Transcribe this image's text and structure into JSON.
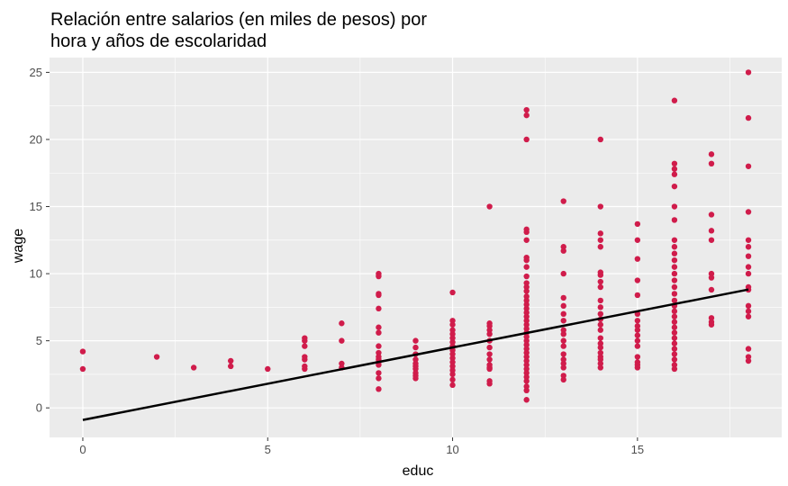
{
  "chart_data": {
    "type": "scatter",
    "title_lines": [
      "Relación entre salarios (en miles de pesos) por",
      "hora y años de escolaridad"
    ],
    "xlabel": "educ",
    "ylabel": "wage",
    "xlim": [
      -0.9,
      18.9
    ],
    "ylim": [
      -2.2,
      26.1
    ],
    "x_ticks": [
      0,
      5,
      10,
      15
    ],
    "x_tick_labels": [
      "0",
      "5",
      "10",
      "15"
    ],
    "y_ticks": [
      0,
      5,
      10,
      15,
      20,
      25
    ],
    "y_tick_labels": [
      "0",
      "5",
      "10",
      "15",
      "20",
      "25"
    ],
    "x_minor_ticks": [
      2.5,
      7.5,
      12.5,
      17.5
    ],
    "y_minor_ticks": [
      2.5,
      7.5,
      12.5,
      17.5,
      22.5
    ],
    "grid": true,
    "legend": "none",
    "colors": {
      "panel_background": "#ebebeb",
      "grid": "#ffffff",
      "points": "#d01c4b",
      "fit_line": "#000000",
      "tick_text": "#4d4d4d"
    },
    "fit_line": {
      "type": "linear",
      "intercept": -0.9,
      "slope": 0.54
    },
    "points": [
      [
        0,
        4.2
      ],
      [
        0,
        2.9
      ],
      [
        2,
        3.8
      ],
      [
        3,
        3.0
      ],
      [
        4,
        3.5
      ],
      [
        4,
        3.1
      ],
      [
        5,
        2.9
      ],
      [
        6,
        5.2
      ],
      [
        6,
        5.0
      ],
      [
        6,
        4.6
      ],
      [
        6,
        3.8
      ],
      [
        6,
        3.6
      ],
      [
        6,
        3.1
      ],
      [
        6,
        2.9
      ],
      [
        7,
        6.3
      ],
      [
        7,
        5.0
      ],
      [
        7,
        3.3
      ],
      [
        7,
        3.0
      ],
      [
        8,
        10.0
      ],
      [
        8,
        9.8
      ],
      [
        8,
        8.5
      ],
      [
        8,
        8.4
      ],
      [
        8,
        7.4
      ],
      [
        8,
        6.0
      ],
      [
        8,
        5.6
      ],
      [
        8,
        4.6
      ],
      [
        8,
        4.1
      ],
      [
        8,
        3.8
      ],
      [
        8,
        3.6
      ],
      [
        8,
        3.4
      ],
      [
        8,
        3.2
      ],
      [
        8,
        2.6
      ],
      [
        8,
        2.2
      ],
      [
        8,
        1.4
      ],
      [
        9,
        5.0
      ],
      [
        9,
        4.5
      ],
      [
        9,
        4.0
      ],
      [
        9,
        3.6
      ],
      [
        9,
        3.3
      ],
      [
        9,
        3.1
      ],
      [
        9,
        2.9
      ],
      [
        9,
        2.6
      ],
      [
        9,
        2.4
      ],
      [
        9,
        2.2
      ],
      [
        10,
        8.6
      ],
      [
        10,
        6.5
      ],
      [
        10,
        6.2
      ],
      [
        10,
        5.8
      ],
      [
        10,
        5.5
      ],
      [
        10,
        5.2
      ],
      [
        10,
        4.9
      ],
      [
        10,
        4.6
      ],
      [
        10,
        4.3
      ],
      [
        10,
        4.0
      ],
      [
        10,
        3.7
      ],
      [
        10,
        3.4
      ],
      [
        10,
        3.1
      ],
      [
        10,
        2.8
      ],
      [
        10,
        2.5
      ],
      [
        10,
        2.1
      ],
      [
        10,
        1.7
      ],
      [
        11,
        15.0
      ],
      [
        11,
        6.3
      ],
      [
        11,
        6.1
      ],
      [
        11,
        5.8
      ],
      [
        11,
        5.5
      ],
      [
        11,
        5.0
      ],
      [
        11,
        4.5
      ],
      [
        11,
        4.0
      ],
      [
        11,
        3.6
      ],
      [
        11,
        3.2
      ],
      [
        11,
        3.0
      ],
      [
        11,
        2.9
      ],
      [
        11,
        2.0
      ],
      [
        11,
        1.8
      ],
      [
        12,
        22.2
      ],
      [
        12,
        21.8
      ],
      [
        12,
        20.0
      ],
      [
        12,
        13.3
      ],
      [
        12,
        13.1
      ],
      [
        12,
        12.5
      ],
      [
        12,
        11.2
      ],
      [
        12,
        11.0
      ],
      [
        12,
        10.5
      ],
      [
        12,
        9.8
      ],
      [
        12,
        9.3
      ],
      [
        12,
        9.0
      ],
      [
        12,
        8.7
      ],
      [
        12,
        8.3
      ],
      [
        12,
        8.0
      ],
      [
        12,
        7.7
      ],
      [
        12,
        7.4
      ],
      [
        12,
        7.1
      ],
      [
        12,
        6.8
      ],
      [
        12,
        6.5
      ],
      [
        12,
        6.2
      ],
      [
        12,
        5.9
      ],
      [
        12,
        5.6
      ],
      [
        12,
        5.3
      ],
      [
        12,
        5.0
      ],
      [
        12,
        4.7
      ],
      [
        12,
        4.4
      ],
      [
        12,
        4.1
      ],
      [
        12,
        3.8
      ],
      [
        12,
        3.5
      ],
      [
        12,
        3.2
      ],
      [
        12,
        2.9
      ],
      [
        12,
        2.6
      ],
      [
        12,
        2.3
      ],
      [
        12,
        2.0
      ],
      [
        12,
        1.6
      ],
      [
        12,
        1.3
      ],
      [
        12,
        0.6
      ],
      [
        13,
        15.4
      ],
      [
        13,
        12.0
      ],
      [
        13,
        11.7
      ],
      [
        13,
        10.0
      ],
      [
        13,
        8.2
      ],
      [
        13,
        7.6
      ],
      [
        13,
        7.0
      ],
      [
        13,
        6.5
      ],
      [
        13,
        5.8
      ],
      [
        13,
        5.5
      ],
      [
        13,
        5.0
      ],
      [
        13,
        4.6
      ],
      [
        13,
        4.0
      ],
      [
        13,
        3.6
      ],
      [
        13,
        3.3
      ],
      [
        13,
        3.0
      ],
      [
        13,
        2.4
      ],
      [
        13,
        2.1
      ],
      [
        14,
        20.0
      ],
      [
        14,
        15.0
      ],
      [
        14,
        13.0
      ],
      [
        14,
        12.5
      ],
      [
        14,
        12.0
      ],
      [
        14,
        10.1
      ],
      [
        14,
        9.9
      ],
      [
        14,
        9.4
      ],
      [
        14,
        9.0
      ],
      [
        14,
        8.0
      ],
      [
        14,
        7.5
      ],
      [
        14,
        7.0
      ],
      [
        14,
        6.6
      ],
      [
        14,
        6.2
      ],
      [
        14,
        5.8
      ],
      [
        14,
        5.2
      ],
      [
        14,
        4.8
      ],
      [
        14,
        4.5
      ],
      [
        14,
        4.1
      ],
      [
        14,
        3.8
      ],
      [
        14,
        3.6
      ],
      [
        14,
        3.3
      ],
      [
        14,
        3.0
      ],
      [
        15,
        13.7
      ],
      [
        15,
        12.5
      ],
      [
        15,
        11.1
      ],
      [
        15,
        9.5
      ],
      [
        15,
        8.4
      ],
      [
        15,
        7.0
      ],
      [
        15,
        6.5
      ],
      [
        15,
        6.1
      ],
      [
        15,
        5.8
      ],
      [
        15,
        5.4
      ],
      [
        15,
        5.0
      ],
      [
        15,
        4.6
      ],
      [
        15,
        3.8
      ],
      [
        15,
        3.4
      ],
      [
        15,
        3.2
      ],
      [
        15,
        3.0
      ],
      [
        16,
        22.9
      ],
      [
        16,
        18.2
      ],
      [
        16,
        17.8
      ],
      [
        16,
        17.4
      ],
      [
        16,
        16.5
      ],
      [
        16,
        15.0
      ],
      [
        16,
        14.0
      ],
      [
        16,
        12.5
      ],
      [
        16,
        12.0
      ],
      [
        16,
        11.5
      ],
      [
        16,
        11.0
      ],
      [
        16,
        10.5
      ],
      [
        16,
        10.0
      ],
      [
        16,
        9.5
      ],
      [
        16,
        9.0
      ],
      [
        16,
        8.5
      ],
      [
        16,
        8.0
      ],
      [
        16,
        7.6
      ],
      [
        16,
        7.2
      ],
      [
        16,
        6.8
      ],
      [
        16,
        6.4
      ],
      [
        16,
        6.0
      ],
      [
        16,
        5.6
      ],
      [
        16,
        5.2
      ],
      [
        16,
        4.8
      ],
      [
        16,
        4.4
      ],
      [
        16,
        4.0
      ],
      [
        16,
        3.6
      ],
      [
        16,
        3.2
      ],
      [
        16,
        2.9
      ],
      [
        17,
        18.9
      ],
      [
        17,
        18.2
      ],
      [
        17,
        14.4
      ],
      [
        17,
        13.2
      ],
      [
        17,
        12.5
      ],
      [
        17,
        10.0
      ],
      [
        17,
        9.7
      ],
      [
        17,
        8.8
      ],
      [
        17,
        6.7
      ],
      [
        17,
        6.4
      ],
      [
        17,
        6.2
      ],
      [
        18,
        25.0
      ],
      [
        18,
        21.6
      ],
      [
        18,
        18.0
      ],
      [
        18,
        14.6
      ],
      [
        18,
        12.5
      ],
      [
        18,
        12.0
      ],
      [
        18,
        11.3
      ],
      [
        18,
        10.5
      ],
      [
        18,
        10.0
      ],
      [
        18,
        9.0
      ],
      [
        18,
        8.8
      ],
      [
        18,
        7.6
      ],
      [
        18,
        7.2
      ],
      [
        18,
        6.8
      ],
      [
        18,
        4.4
      ],
      [
        18,
        3.8
      ],
      [
        18,
        3.5
      ]
    ]
  }
}
